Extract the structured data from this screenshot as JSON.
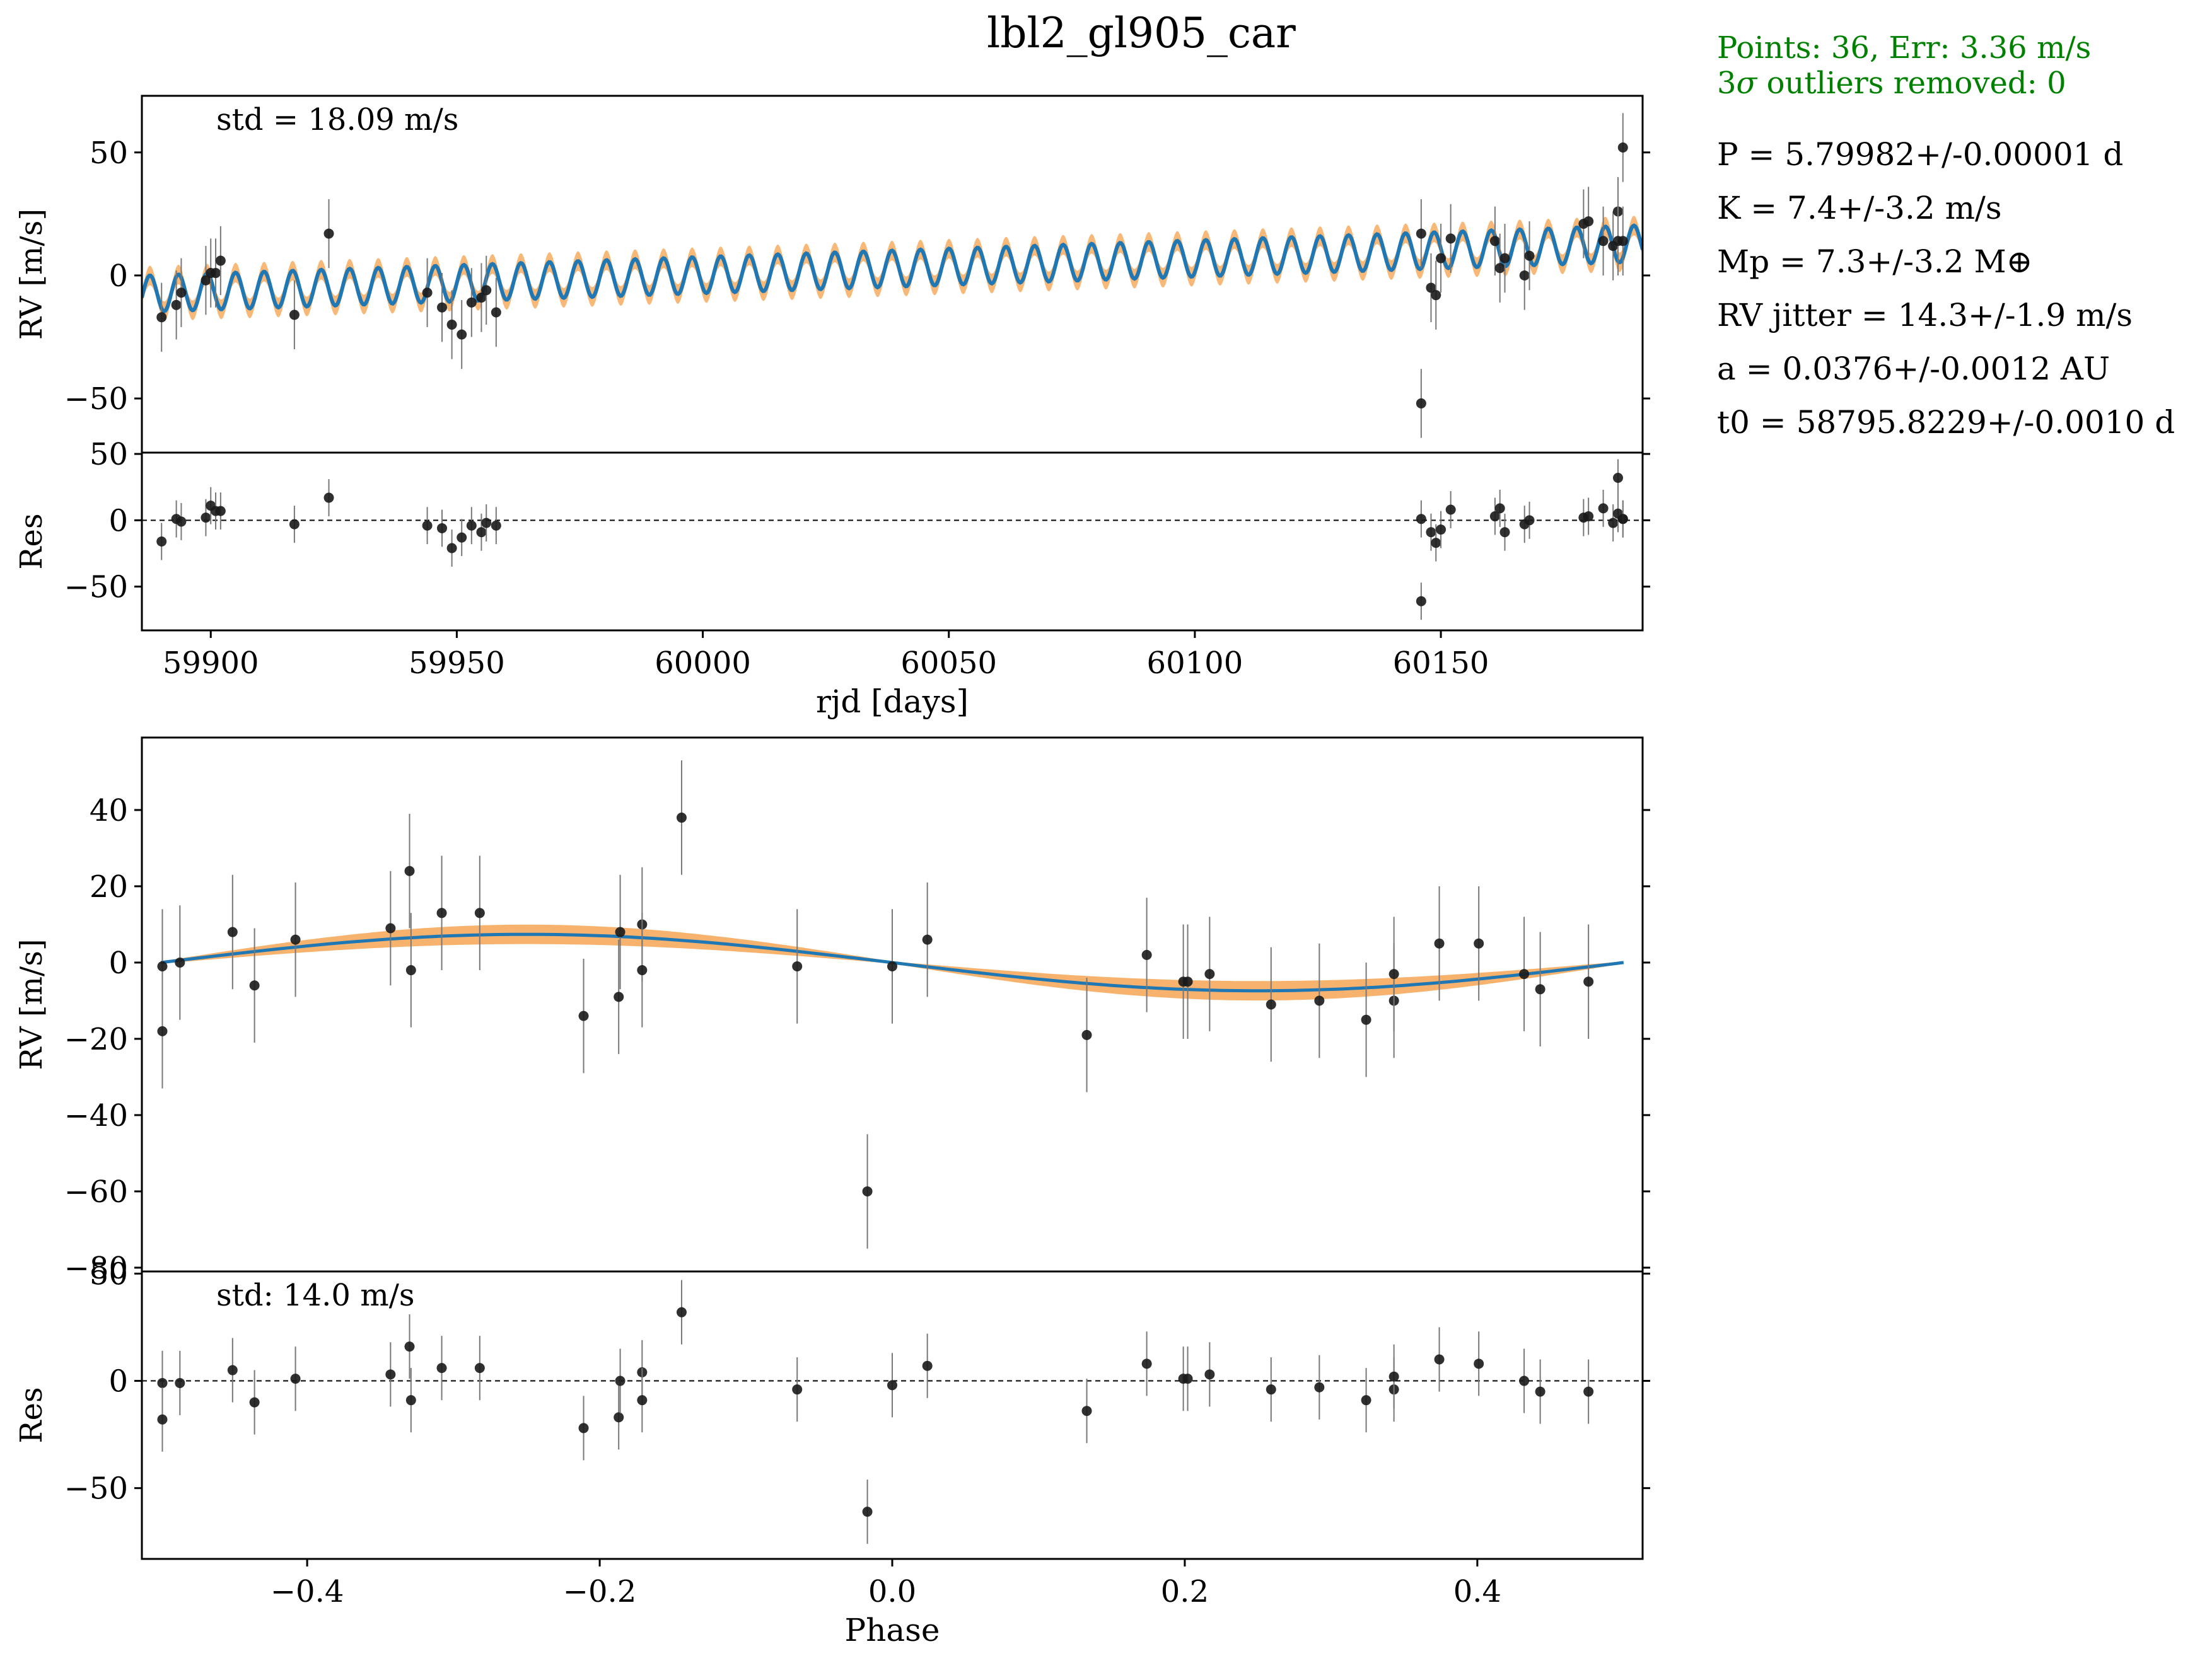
{
  "title": "lbl2_gl905_car",
  "info": {
    "summary_line1": "Points: 36, Err: 3.36 m/s",
    "summary_line2_prefix": "3",
    "summary_line2_sigma": "σ",
    "summary_line2_suffix": " outliers removed: 0",
    "params": [
      "P = 5.79982+/-0.00001 d",
      "K = 7.4+/-3.2 m/s",
      "Mp = 7.3+/-3.2 M⊕",
      "RV jitter = 14.3+/-1.9 m/s",
      "a = 0.0376+/-0.0012 AU",
      "t0 = 58795.8229+/-0.0010 d"
    ]
  },
  "colors": {
    "model": "#1f77b4",
    "band": "#f5a04a",
    "points": "#1a1a1a",
    "summary": "#008000"
  },
  "chart_data": [
    {
      "type": "scatter",
      "panel": "rv-time",
      "annotation": "std = 18.09 m/s",
      "ylabel": "RV [m/s]",
      "xlim": [
        59886,
        60191
      ],
      "ylim": [
        -72,
        73
      ],
      "yticks": [
        "50",
        "0",
        "−50"
      ],
      "ytick_values": [
        50,
        0,
        -50
      ],
      "model": {
        "period": 5.79982,
        "t0": 58795.8229,
        "K": 7.4,
        "trend": [
          59886,
          -7.5,
          60191,
          13.0
        ],
        "band_halfwidth": 4
      },
      "x": [
        59890,
        59893,
        59894,
        59899,
        59900,
        59901,
        59902,
        59917,
        59924,
        59944,
        59947,
        59949,
        59951,
        59953,
        59955,
        59956,
        59958,
        60146,
        60146,
        60148,
        60149,
        60150,
        60152,
        60161,
        60162,
        60163,
        60167,
        60168,
        60179,
        60180,
        60183,
        60185,
        60186,
        60186,
        60187,
        60187
      ],
      "y": [
        -17,
        -12,
        -7,
        -2,
        1,
        1,
        6,
        -16,
        17,
        -7,
        -13,
        -20,
        -24,
        -11,
        -9,
        -6,
        -15,
        17,
        -52,
        -5,
        -8,
        7,
        15,
        14,
        3,
        7,
        0,
        8,
        21,
        22,
        14,
        12,
        26,
        14,
        52,
        14
      ],
      "yerr": [
        14,
        14,
        14,
        14,
        14,
        14,
        14,
        14,
        14,
        14,
        14,
        14,
        14,
        14,
        14,
        14,
        14,
        14,
        14,
        14,
        14,
        14,
        14,
        14,
        14,
        14,
        14,
        14,
        14,
        14,
        14,
        14,
        14,
        14,
        14,
        14
      ]
    },
    {
      "type": "scatter",
      "panel": "res-time",
      "ylabel": "Res",
      "xlabel": "rjd [days]",
      "xlim": [
        59886,
        60191
      ],
      "ylim": [
        -83,
        51
      ],
      "yticks": [
        "50",
        "0",
        "−50"
      ],
      "ytick_values": [
        50,
        0,
        -50
      ],
      "xticks": [
        "59900",
        "59950",
        "60000",
        "60050",
        "60100",
        "60150"
      ],
      "xtick_values": [
        59900,
        59950,
        60000,
        60050,
        60100,
        60150
      ],
      "x": [
        59890,
        59893,
        59894,
        59899,
        59900,
        59901,
        59902,
        59917,
        59924,
        59944,
        59947,
        59949,
        59951,
        59953,
        59955,
        59956,
        59958,
        60146,
        60146,
        60148,
        60149,
        60150,
        60152,
        60161,
        60162,
        60163,
        60167,
        60168,
        60179,
        60180,
        60183,
        60185,
        60186,
        60186,
        60187,
        60187
      ],
      "y": [
        -16,
        1,
        -1,
        2,
        11,
        7,
        7,
        -3,
        17,
        -4,
        -6,
        -21,
        -13,
        -4,
        -9,
        -2,
        -4,
        1,
        -61,
        -9,
        -17,
        -7,
        8,
        3,
        9,
        -9,
        -3,
        0,
        2,
        3,
        9,
        -2,
        5,
        32,
        1,
        1
      ],
      "yerr": [
        14,
        14,
        14,
        14,
        14,
        14,
        14,
        14,
        14,
        14,
        14,
        14,
        14,
        14,
        14,
        14,
        14,
        14,
        14,
        14,
        14,
        14,
        14,
        14,
        14,
        14,
        14,
        14,
        14,
        14,
        14,
        14,
        14,
        14,
        14,
        14
      ]
    },
    {
      "type": "scatter",
      "panel": "rv-phase",
      "ylabel": "RV [m/s]",
      "xlim": [
        -0.513,
        0.513
      ],
      "ylim": [
        -81,
        59
      ],
      "yticks": [
        "40",
        "20",
        "0",
        "−20",
        "−40",
        "−60",
        "−80"
      ],
      "ytick_values": [
        40,
        20,
        0,
        -20,
        -40,
        -60,
        -80
      ],
      "model": {
        "K": 7.4,
        "band_amplitude": [
          9.5,
          5.0
        ]
      },
      "x": [
        -0.499,
        -0.499,
        -0.487,
        -0.451,
        -0.436,
        -0.408,
        -0.343,
        -0.33,
        -0.329,
        -0.308,
        -0.282,
        -0.211,
        -0.187,
        -0.186,
        -0.171,
        -0.171,
        -0.144,
        -0.065,
        -0.017,
        0.0,
        0.024,
        0.133,
        0.174,
        0.199,
        0.202,
        0.217,
        0.259,
        0.292,
        0.324,
        0.343,
        0.343,
        0.374,
        0.401,
        0.432,
        0.443,
        0.476
      ],
      "y": [
        -1,
        -18,
        0,
        8,
        -6,
        6,
        9,
        24,
        -2,
        13,
        13,
        -14,
        -9,
        8,
        10,
        -2,
        38,
        -1,
        -60,
        -1,
        6,
        -19,
        2,
        -5,
        -5,
        -3,
        -11,
        -10,
        -15,
        -10,
        -3,
        5,
        5,
        -3,
        -7,
        -5
      ],
      "yerr": [
        15,
        15,
        15,
        15,
        15,
        15,
        15,
        15,
        15,
        15,
        15,
        15,
        15,
        15,
        15,
        15,
        15,
        15,
        15,
        15,
        15,
        15,
        15,
        15,
        15,
        15,
        15,
        15,
        15,
        15,
        15,
        15,
        15,
        15,
        15,
        15
      ]
    },
    {
      "type": "scatter",
      "panel": "res-phase",
      "annotation": "std: 14.0 m/s",
      "ylabel": "Res",
      "xlabel": "Phase",
      "xlim": [
        -0.513,
        0.513
      ],
      "ylim": [
        -83,
        51
      ],
      "yticks": [
        "50",
        "0",
        "−50"
      ],
      "ytick_values": [
        50,
        0,
        -50
      ],
      "xticks": [
        "−0.4",
        "−0.2",
        "0.0",
        "0.2",
        "0.4"
      ],
      "xtick_values": [
        -0.4,
        -0.2,
        0.0,
        0.2,
        0.4
      ],
      "x": [
        -0.499,
        -0.499,
        -0.487,
        -0.451,
        -0.436,
        -0.408,
        -0.343,
        -0.33,
        -0.329,
        -0.308,
        -0.282,
        -0.211,
        -0.187,
        -0.186,
        -0.171,
        -0.171,
        -0.144,
        -0.065,
        -0.017,
        0.0,
        0.024,
        0.133,
        0.174,
        0.199,
        0.202,
        0.217,
        0.259,
        0.292,
        0.324,
        0.343,
        0.343,
        0.374,
        0.401,
        0.432,
        0.443,
        0.476
      ],
      "y": [
        -1,
        -18,
        -1,
        5,
        -10,
        1,
        3,
        16,
        -9,
        6,
        6,
        -22,
        -17,
        0,
        4,
        -9,
        32,
        -4,
        -61,
        -2,
        7,
        -14,
        8,
        1,
        1,
        3,
        -4,
        -3,
        -9,
        -4,
        2,
        10,
        8,
        0,
        -5,
        -5
      ],
      "yerr": [
        15,
        15,
        15,
        15,
        15,
        15,
        15,
        15,
        15,
        15,
        15,
        15,
        15,
        15,
        15,
        15,
        15,
        15,
        15,
        15,
        15,
        15,
        15,
        15,
        15,
        15,
        15,
        15,
        15,
        15,
        15,
        15,
        15,
        15,
        15,
        15
      ]
    }
  ]
}
